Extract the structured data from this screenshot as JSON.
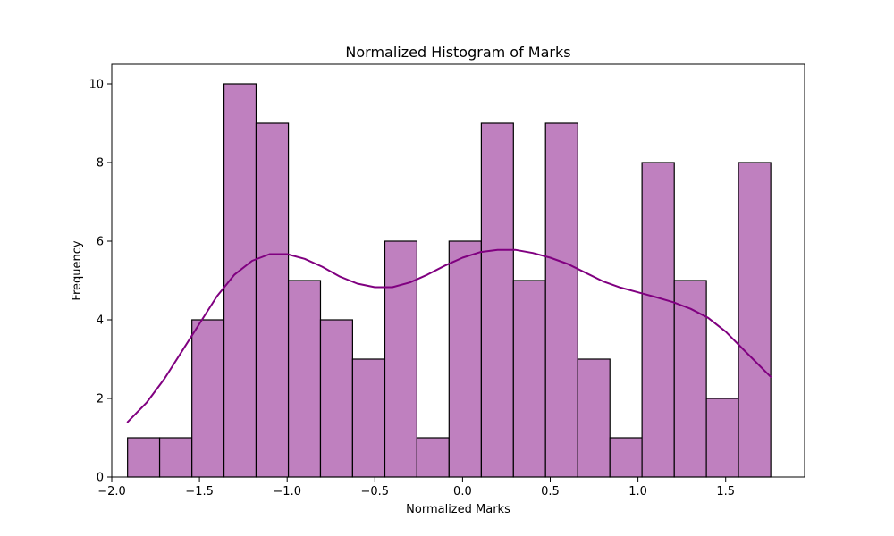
{
  "chart_data": {
    "type": "bar",
    "title": "Normalized Histogram of Marks",
    "xlabel": "Normalized Marks",
    "ylabel": "Frequency",
    "xlim": [
      -2.0,
      1.95
    ],
    "ylim": [
      0,
      10.5
    ],
    "grid": false,
    "x_ticks": [
      -2.0,
      -1.5,
      -1.0,
      -0.5,
      0.0,
      0.5,
      1.0,
      1.5
    ],
    "x_tick_labels": [
      "−2.0",
      "−1.5",
      "−1.0",
      "−0.5",
      "0.0",
      "0.5",
      "1.0",
      "1.5"
    ],
    "y_ticks": [
      0,
      2,
      4,
      6,
      8,
      10
    ],
    "y_tick_labels": [
      "0",
      "2",
      "4",
      "6",
      "8",
      "10"
    ],
    "bin_edges": [
      -1.91,
      -1.727,
      -1.543,
      -1.36,
      -1.177,
      -0.993,
      -0.81,
      -0.627,
      -0.443,
      -0.26,
      -0.077,
      0.107,
      0.29,
      0.473,
      0.657,
      0.84,
      1.023,
      1.207,
      1.39,
      1.573,
      1.757
    ],
    "values": [
      1,
      1,
      4,
      10,
      9,
      5,
      4,
      3,
      6,
      1,
      6,
      9,
      5,
      9,
      3,
      1,
      8,
      5,
      2,
      8
    ],
    "kde": {
      "x": [
        -1.91,
        -1.8,
        -1.7,
        -1.6,
        -1.5,
        -1.4,
        -1.3,
        -1.2,
        -1.1,
        -1.0,
        -0.9,
        -0.8,
        -0.7,
        -0.6,
        -0.5,
        -0.4,
        -0.3,
        -0.2,
        -0.1,
        0.0,
        0.1,
        0.2,
        0.3,
        0.4,
        0.5,
        0.6,
        0.7,
        0.8,
        0.9,
        1.0,
        1.1,
        1.2,
        1.3,
        1.4,
        1.5,
        1.6,
        1.757
      ],
      "y": [
        1.4,
        1.9,
        2.5,
        3.2,
        3.9,
        4.6,
        5.15,
        5.5,
        5.67,
        5.67,
        5.55,
        5.35,
        5.1,
        4.92,
        4.83,
        4.83,
        4.95,
        5.15,
        5.38,
        5.58,
        5.72,
        5.78,
        5.78,
        5.7,
        5.58,
        5.42,
        5.2,
        4.98,
        4.82,
        4.7,
        4.58,
        4.45,
        4.28,
        4.05,
        3.7,
        3.25,
        2.55
      ]
    },
    "colors": {
      "bar_fill": "#bf80bf",
      "bar_edge": "#000000",
      "kde_line": "#800080"
    }
  }
}
